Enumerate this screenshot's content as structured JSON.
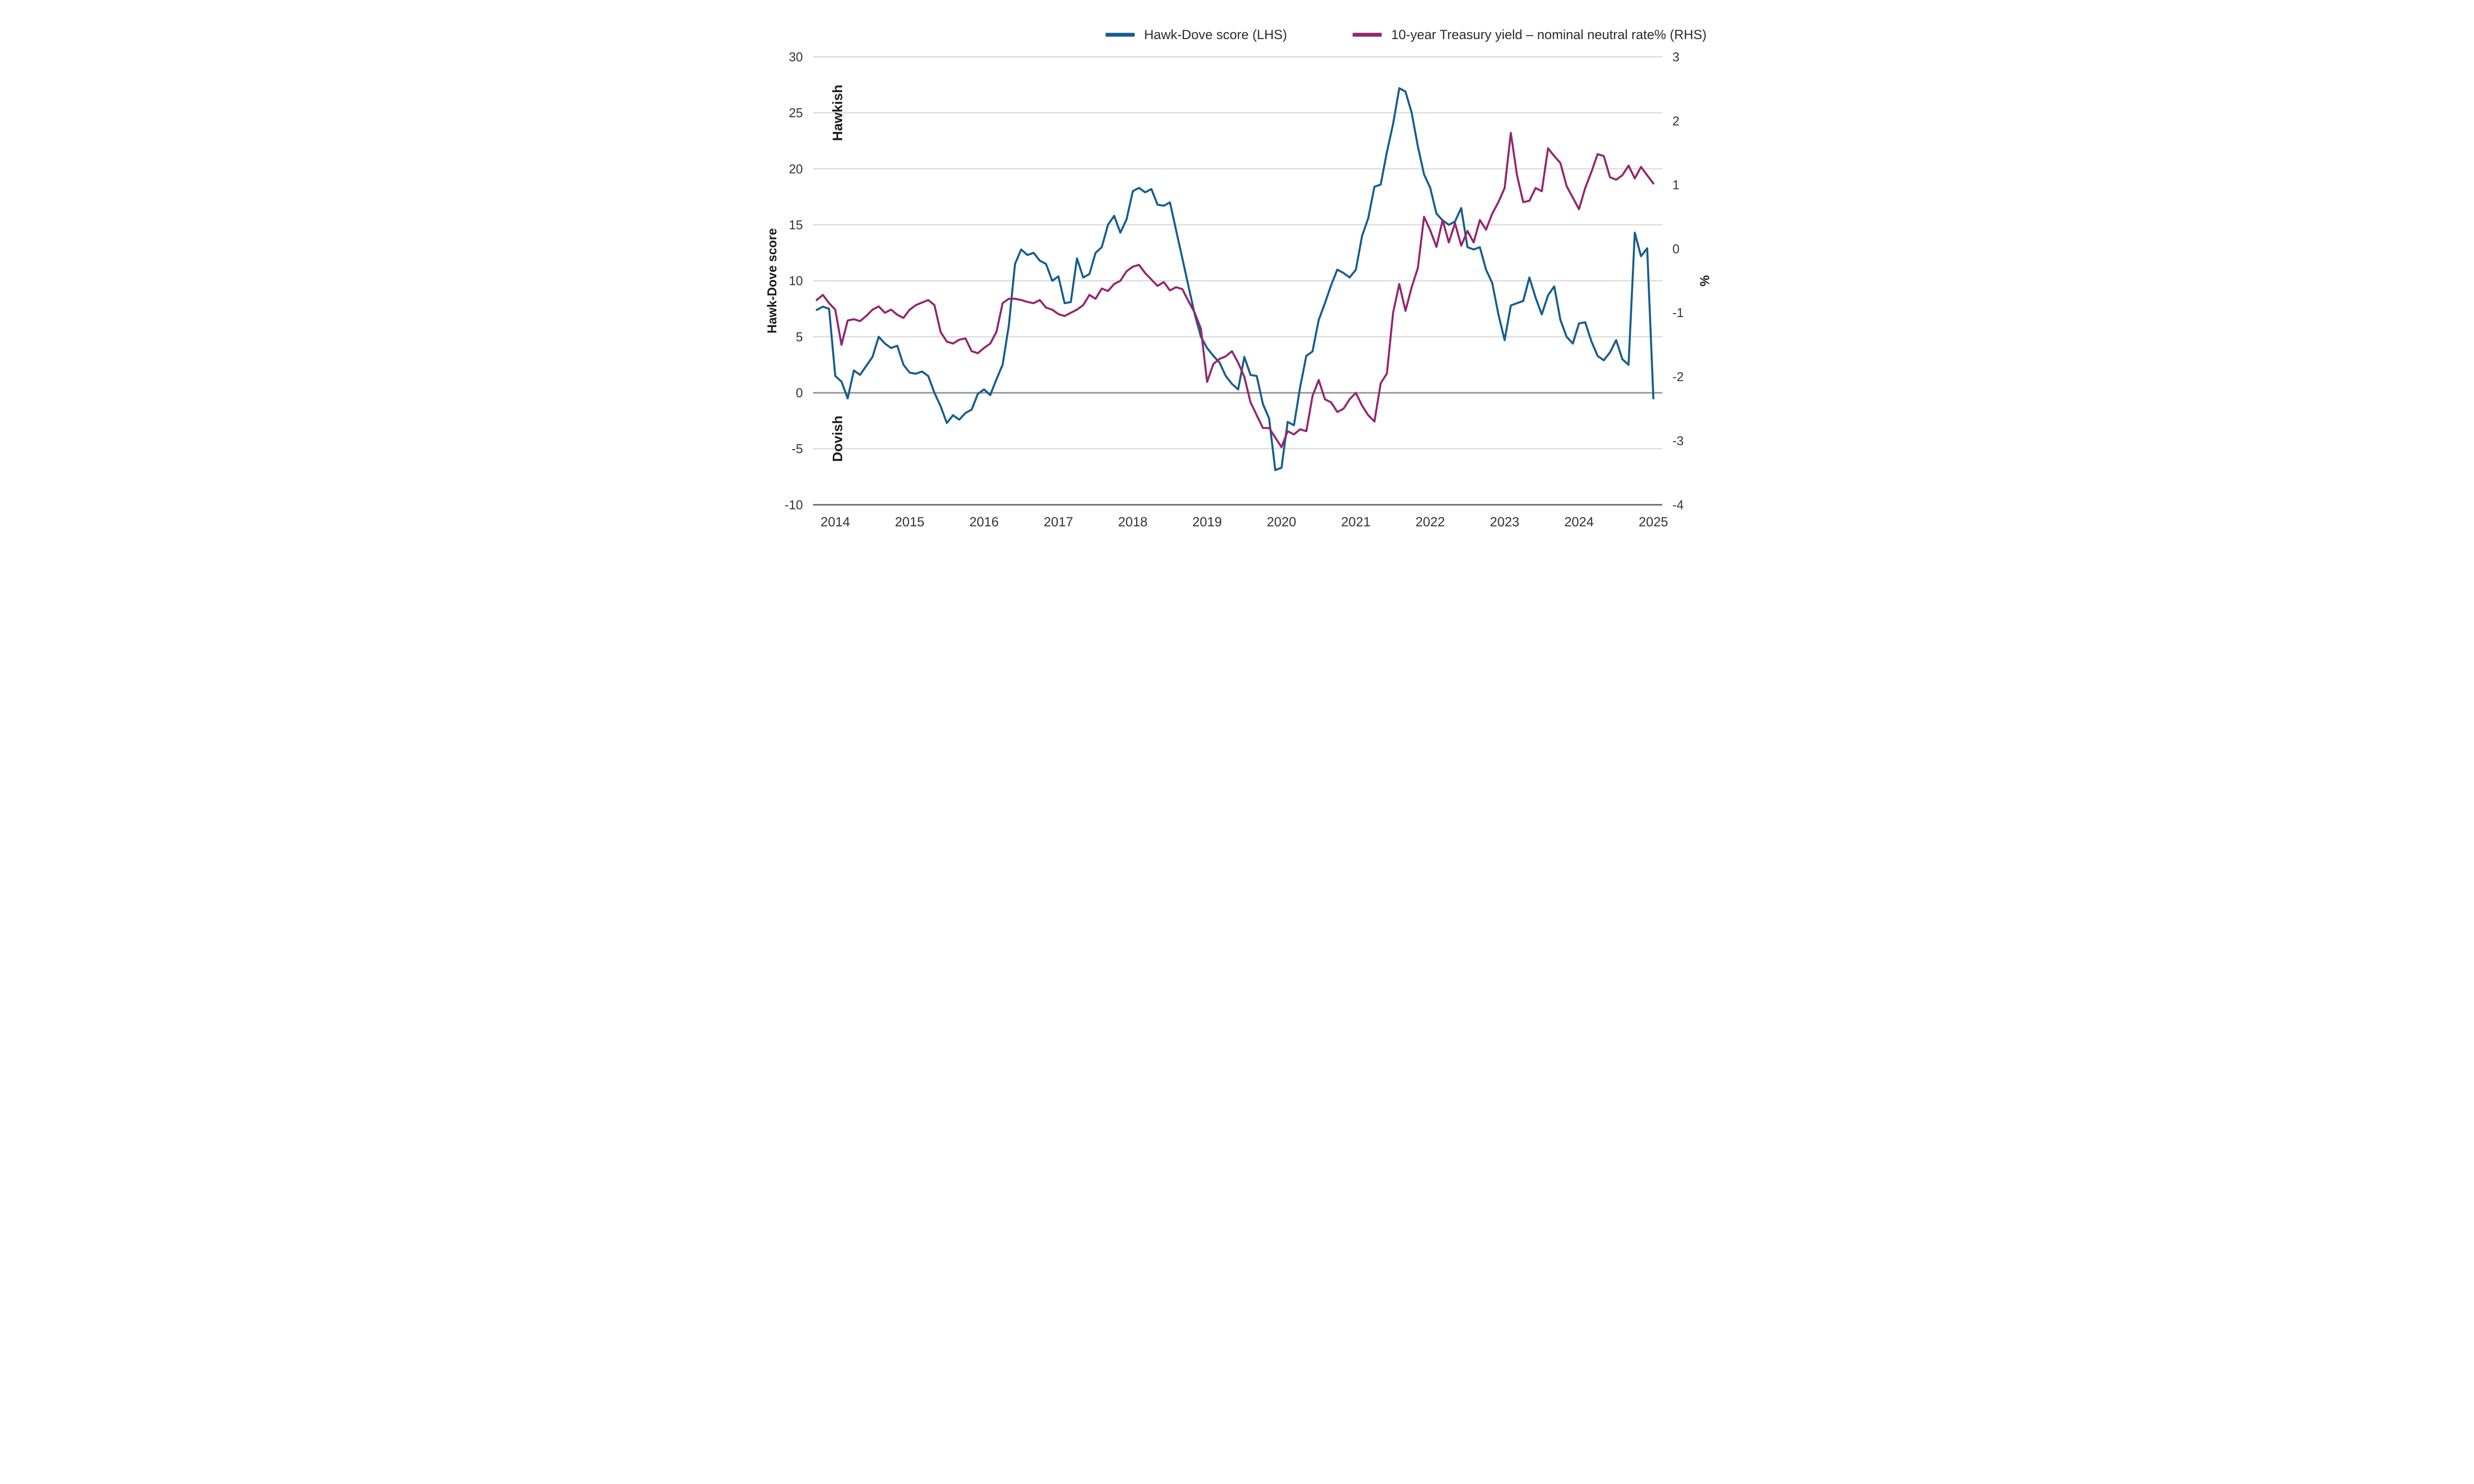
{
  "colors": {
    "hawk_dove_blue": "#175d8e",
    "treasury_purple": "#93276f",
    "grid_gray": "#c7c8ca",
    "zero_line_gray": "#8e9093",
    "axis_gray": "#6d6e71",
    "text_dark": "#333333"
  },
  "chart_data": {
    "type": "line",
    "title": "",
    "legend_position": "top",
    "grid": "horizontal-only",
    "x_domain": [
      2013.7,
      2025.12
    ],
    "x_ticks": [
      2014,
      2015,
      2016,
      2017,
      2018,
      2019,
      2020,
      2021,
      2022,
      2023,
      2024,
      2025
    ],
    "left_axis": {
      "label": "Hawk-Dove score",
      "min": -10,
      "max": 30,
      "ticks": [
        30,
        25,
        20,
        15,
        10,
        5,
        0,
        -5,
        -10
      ]
    },
    "right_axis": {
      "label": "%",
      "min": -4,
      "max": 3,
      "ticks": [
        3,
        2,
        1,
        0,
        -1,
        -2,
        -3,
        -4
      ]
    },
    "annotations": [
      {
        "text": "Hawkish",
        "at_left_value": 25,
        "x": 158
      },
      {
        "text": "Dovish",
        "at_left_value": -4.1,
        "x": 158
      }
    ],
    "legend": [
      {
        "label": "Hawk-Dove score (LHS)",
        "color": "#175d8e"
      },
      {
        "label": "10-year Treasury yield – nominal neutral rate% (RHS)",
        "color": "#93276f"
      }
    ],
    "series": [
      {
        "key": "hawk-dove",
        "name": "Hawk-Dove score (LHS)",
        "axis": "left",
        "color": "#175d8e",
        "start": 2013.75,
        "step": 0.0833333,
        "values": [
          7.4,
          7.7,
          7.5,
          1.5,
          1.0,
          -0.5,
          2.0,
          1.6,
          2.4,
          3.2,
          5.0,
          4.4,
          4.0,
          4.2,
          2.5,
          1.8,
          1.7,
          1.9,
          1.5,
          0.0,
          -1.2,
          -2.7,
          -2.0,
          -2.4,
          -1.8,
          -1.5,
          -0.1,
          0.3,
          -0.2,
          1.2,
          2.5,
          6.0,
          11.5,
          12.8,
          12.3,
          12.5,
          11.8,
          11.5,
          10.0,
          10.4,
          8.0,
          8.1,
          12.0,
          10.3,
          10.6,
          12.5,
          13.0,
          15.0,
          15.8,
          14.3,
          15.5,
          18.0,
          18.3,
          17.9,
          18.2,
          16.8,
          16.7,
          17.0,
          14.5,
          12.0,
          9.5,
          7.0,
          5.0,
          4.0,
          3.3,
          2.7,
          1.5,
          0.8,
          0.3,
          3.2,
          1.6,
          1.5,
          -1.0,
          -2.3,
          -6.9,
          -6.7,
          -2.6,
          -2.9,
          0.5,
          3.3,
          3.7,
          6.5,
          8.0,
          9.6,
          11.0,
          10.7,
          10.3,
          11.0,
          14.0,
          15.6,
          18.4,
          18.6,
          21.5,
          24.0,
          27.2,
          26.9,
          25.0,
          22.0,
          19.5,
          18.3,
          16.0,
          15.4,
          15.0,
          15.3,
          16.5,
          13.0,
          12.8,
          13.0,
          11.0,
          9.8,
          7.0,
          4.7,
          7.8,
          8.0,
          8.2,
          10.3,
          8.5,
          7.0,
          8.7,
          9.5,
          6.5,
          5.0,
          4.4,
          6.2,
          6.3,
          4.6,
          3.3,
          2.9,
          3.6,
          4.7,
          3.0,
          2.5,
          14.3,
          12.2,
          12.9,
          -0.5
        ]
      },
      {
        "key": "treasury-yield",
        "name": "10-year Treasury yield – nominal neutral rate% (RHS)",
        "axis": "right",
        "color": "#93276f",
        "start": 2013.75,
        "step": 0.0833333,
        "values": [
          -0.8,
          -0.72,
          -0.85,
          -0.95,
          -1.5,
          -1.12,
          -1.1,
          -1.13,
          -1.05,
          -0.95,
          -0.9,
          -1.0,
          -0.95,
          -1.03,
          -1.08,
          -0.95,
          -0.88,
          -0.84,
          -0.8,
          -0.88,
          -1.3,
          -1.45,
          -1.48,
          -1.42,
          -1.4,
          -1.6,
          -1.63,
          -1.55,
          -1.48,
          -1.3,
          -0.85,
          -0.78,
          -0.78,
          -0.8,
          -0.83,
          -0.85,
          -0.8,
          -0.92,
          -0.95,
          -1.02,
          -1.05,
          -1.0,
          -0.95,
          -0.88,
          -0.72,
          -0.78,
          -0.62,
          -0.66,
          -0.55,
          -0.5,
          -0.35,
          -0.28,
          -0.25,
          -0.38,
          -0.48,
          -0.58,
          -0.52,
          -0.65,
          -0.6,
          -0.63,
          -0.82,
          -1.0,
          -1.25,
          -2.08,
          -1.8,
          -1.72,
          -1.68,
          -1.6,
          -1.78,
          -2.0,
          -2.4,
          -2.6,
          -2.8,
          -2.8,
          -2.95,
          -3.1,
          -2.85,
          -2.9,
          -2.82,
          -2.85,
          -2.3,
          -2.05,
          -2.35,
          -2.4,
          -2.55,
          -2.5,
          -2.35,
          -2.25,
          -2.45,
          -2.6,
          -2.7,
          -2.1,
          -1.95,
          -1.0,
          -0.55,
          -0.97,
          -0.6,
          -0.3,
          0.5,
          0.29,
          0.03,
          0.45,
          0.1,
          0.4,
          0.05,
          0.28,
          0.1,
          0.45,
          0.3,
          0.55,
          0.73,
          0.95,
          1.81,
          1.15,
          0.73,
          0.75,
          0.95,
          0.9,
          1.57,
          1.45,
          1.34,
          0.98,
          0.8,
          0.62,
          0.95,
          1.2,
          1.48,
          1.45,
          1.12,
          1.08,
          1.15,
          1.3,
          1.1,
          1.28,
          1.15,
          1.02
        ]
      }
    ]
  }
}
